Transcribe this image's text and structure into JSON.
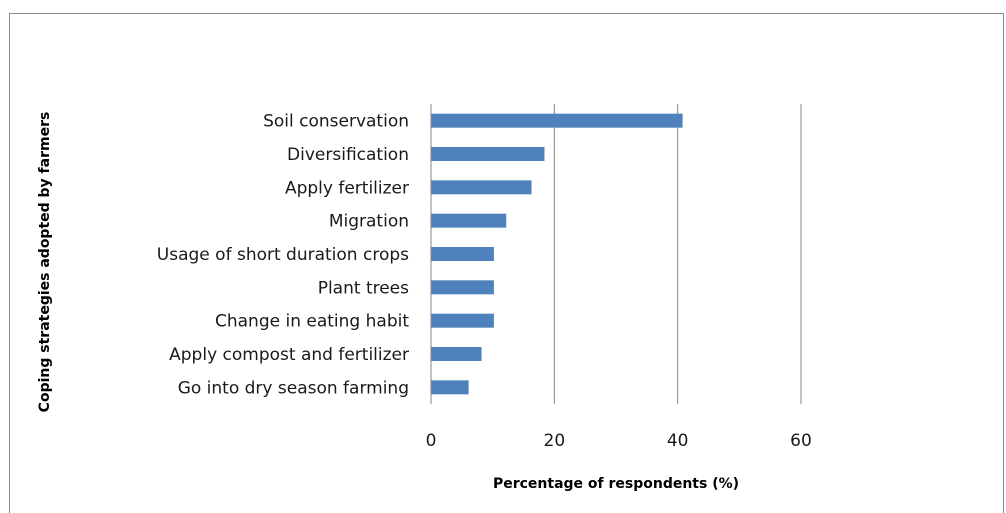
{
  "chart_data": {
    "type": "bar",
    "orientation": "horizontal",
    "categories": [
      "Soil conservation",
      "Diversification",
      "Apply fertilizer",
      "Migration",
      "Usage of short duration  crops",
      "Plant trees",
      "Change in eating habit",
      "Apply compost and fertilizer",
      "Go into dry season farming"
    ],
    "values": [
      40.8,
      18.4,
      16.3,
      12.2,
      10.2,
      10.2,
      10.2,
      8.2,
      6.1
    ],
    "xlabel": "Percentage of respondents (%)",
    "ylabel": "Coping strategies adopted by farmers",
    "xlim": [
      0,
      60
    ],
    "xticks": [
      "0",
      "20",
      "40",
      "60"
    ],
    "xtick_values": [
      0,
      20,
      40,
      60
    ],
    "grid": "vertical",
    "legend": "none",
    "bar_color": "#4f81bd"
  }
}
